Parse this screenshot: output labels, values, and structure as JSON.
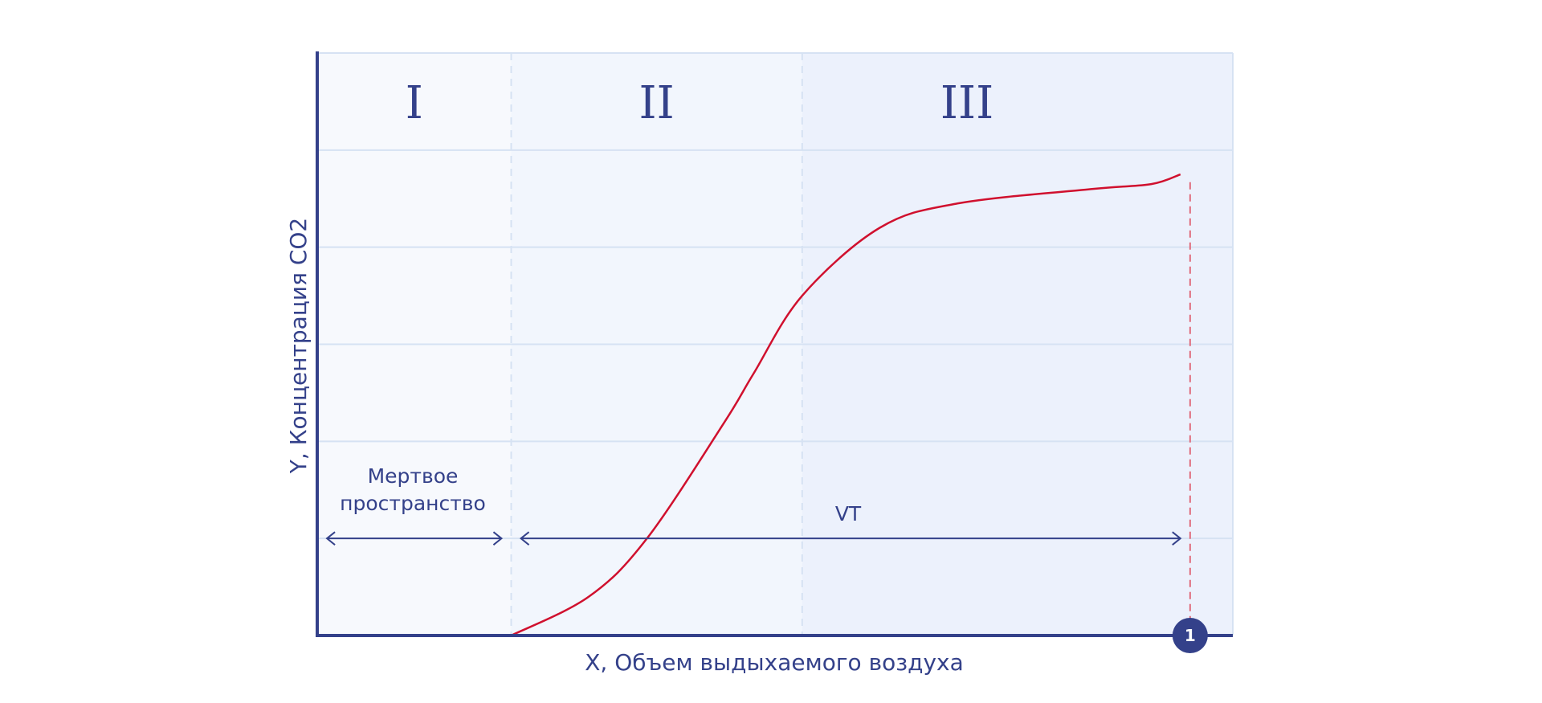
{
  "chart_data": {
    "type": "line",
    "xlabel": "X, Объем выдыхаемого воздуха",
    "ylabel": "Y, Концентрация CO2",
    "grid": true,
    "phases": [
      {
        "label": "I",
        "x_start": 0,
        "x_end": 1
      },
      {
        "label": "II",
        "x_start": 1,
        "x_end": 2.5
      },
      {
        "label": "III",
        "x_start": 2.5,
        "x_end": 4.72
      }
    ],
    "series": [
      {
        "color": "#d0102e",
        "x": [
          1.0,
          1.4,
          1.7,
          2.1,
          2.25,
          2.5,
          2.9,
          3.3,
          4.0,
          4.3,
          4.45
        ],
        "y": [
          0.0,
          0.4,
          1.0,
          2.2,
          2.7,
          3.5,
          4.2,
          4.45,
          4.6,
          4.65,
          4.75
        ]
      }
    ],
    "xlim": [
      0,
      4.72
    ],
    "ylim": [
      0,
      6
    ],
    "y_gridlines": [
      1,
      2,
      3,
      4,
      5
    ],
    "annotations": {
      "dead_space_line1": "Мертвое",
      "dead_space_line2": "пространство",
      "vt_label": "VT",
      "dead_space_span": [
        0.05,
        0.95
      ],
      "vt_span": [
        1.05,
        4.45
      ],
      "arrow_y": 1,
      "end_marker_x": 4.5,
      "end_marker_label": "1"
    },
    "colors": {
      "axis": "#34418a",
      "curve": "#d0102e",
      "grid": "#d6e2f3",
      "phase1_bg": "#f7f9fd",
      "phase2_bg": "#f2f6fd",
      "phase3_bg": "#ecf1fc",
      "marker_fill": "#34418a",
      "end_line": "#e07080"
    }
  }
}
